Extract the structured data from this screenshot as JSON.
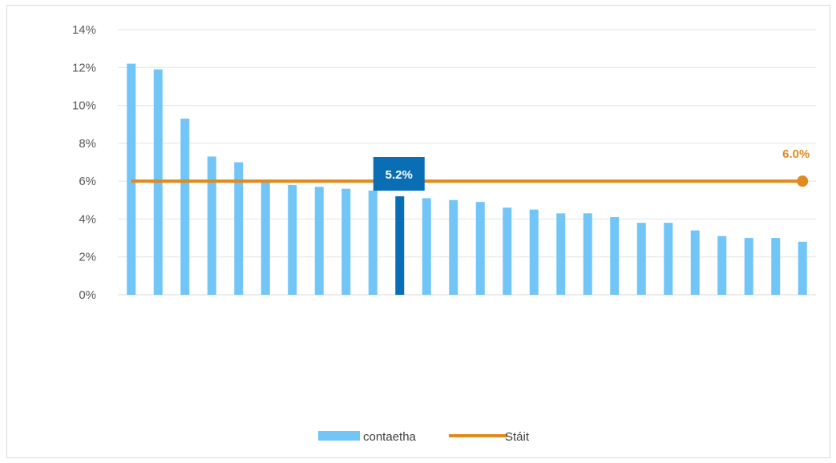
{
  "chart_data": {
    "type": "bar",
    "title": "",
    "xlabel": "",
    "ylabel": "",
    "ylim": [
      0,
      14
    ],
    "y_ticks": [
      "0%",
      "2%",
      "4%",
      "6%",
      "8%",
      "10%",
      "12%",
      "14%"
    ],
    "y_tick_values": [
      0,
      2,
      4,
      6,
      8,
      10,
      12,
      14
    ],
    "grid": "horizontal",
    "legend_position": "bottom",
    "series": [
      {
        "name": "contaetha",
        "type": "bar",
        "color": "#71c5f7",
        "values": [
          12.2,
          11.9,
          9.3,
          7.3,
          7.0,
          6.0,
          5.8,
          5.7,
          5.6,
          5.5,
          5.2,
          5.1,
          5.0,
          4.9,
          4.6,
          4.5,
          4.3,
          4.3,
          4.1,
          3.8,
          3.8,
          3.4,
          3.1,
          3.0,
          3.0,
          2.8
        ]
      },
      {
        "name": "Stáit",
        "type": "line",
        "color": "#e08a1e",
        "value": 6.0
      }
    ],
    "highlight": {
      "index": 10,
      "value": 5.2,
      "label": "5.2%",
      "color": "#0a6eb5"
    },
    "state_label": "6.0%"
  },
  "legend": [
    {
      "label": "contaetha",
      "color": "#71c5f7",
      "kind": "bar"
    },
    {
      "label": "Stáit",
      "color": "#e08a1e",
      "kind": "line"
    }
  ]
}
